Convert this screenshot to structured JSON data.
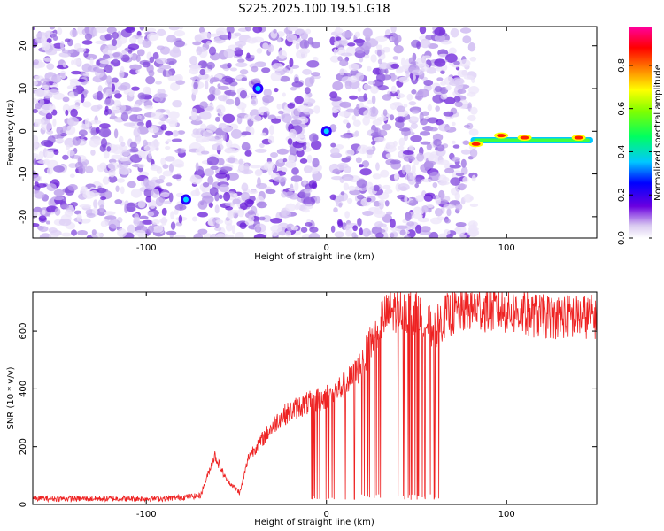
{
  "title": "S225.2025.100.19.51.G18",
  "chart_data": [
    {
      "type": "heatmap",
      "xlabel": "Height of straight line (km)",
      "ylabel": "Frequency (Hz)",
      "xlim": [
        -163,
        150
      ],
      "ylim": [
        -25,
        24.5
      ],
      "xticks": [
        -100,
        0,
        100
      ],
      "yticks": [
        -20,
        -10,
        0,
        10,
        20
      ],
      "colorbar": {
        "label": "Normalized spectral amplitude",
        "range": [
          0,
          0.98
        ],
        "ticks": [
          0.0,
          0.2,
          0.4,
          0.6,
          0.8
        ]
      },
      "features": [
        {
          "x": 0,
          "y": 0,
          "amplitude": 0.2
        },
        {
          "x": -38,
          "y": 10,
          "amplitude": 0.1
        },
        {
          "x": -78,
          "y": -16,
          "amplitude": 0.15
        },
        {
          "x": 83,
          "y": -3,
          "amplitude": 0.9
        },
        {
          "x": 97,
          "y": -1,
          "amplitude": 0.85
        },
        {
          "x": 110,
          "y": -1.5,
          "amplitude": 0.9
        },
        {
          "x": 140,
          "y": -1.5,
          "amplitude": 0.9
        }
      ],
      "gaps_x": [
        [
          -80,
          -74
        ],
        [
          -5,
          3
        ],
        [
          82,
          150
        ]
      ],
      "tone_line": {
        "x_start": 80,
        "x_end": 148,
        "y": -2
      }
    },
    {
      "type": "line",
      "xlabel": "Height of straight line (km)",
      "ylabel": "SNR (10 * v/v)",
      "xlim": [
        -163,
        150
      ],
      "ylim": [
        0,
        735
      ],
      "xticks": [
        -100,
        0,
        100
      ],
      "yticks": [
        0,
        200,
        400,
        600
      ],
      "color": "#ee2222",
      "envelope": [
        {
          "x": -163,
          "y": 20
        },
        {
          "x": -90,
          "y": 20
        },
        {
          "x": -70,
          "y": 30
        },
        {
          "x": -62,
          "y": 170
        },
        {
          "x": -56,
          "y": 90
        },
        {
          "x": -48,
          "y": 40
        },
        {
          "x": -43,
          "y": 170
        },
        {
          "x": -35,
          "y": 230
        },
        {
          "x": -26,
          "y": 300
        },
        {
          "x": -15,
          "y": 340
        },
        {
          "x": -5,
          "y": 360
        },
        {
          "x": 5,
          "y": 390
        },
        {
          "x": 15,
          "y": 440
        },
        {
          "x": 22,
          "y": 520
        },
        {
          "x": 30,
          "y": 640
        },
        {
          "x": 40,
          "y": 680
        },
        {
          "x": 50,
          "y": 660
        },
        {
          "x": 60,
          "y": 600
        },
        {
          "x": 65,
          "y": 650
        },
        {
          "x": 80,
          "y": 680
        },
        {
          "x": 100,
          "y": 670
        },
        {
          "x": 120,
          "y": 650
        },
        {
          "x": 150,
          "y": 650
        }
      ],
      "dropout_range": [
        -10,
        63
      ]
    }
  ]
}
